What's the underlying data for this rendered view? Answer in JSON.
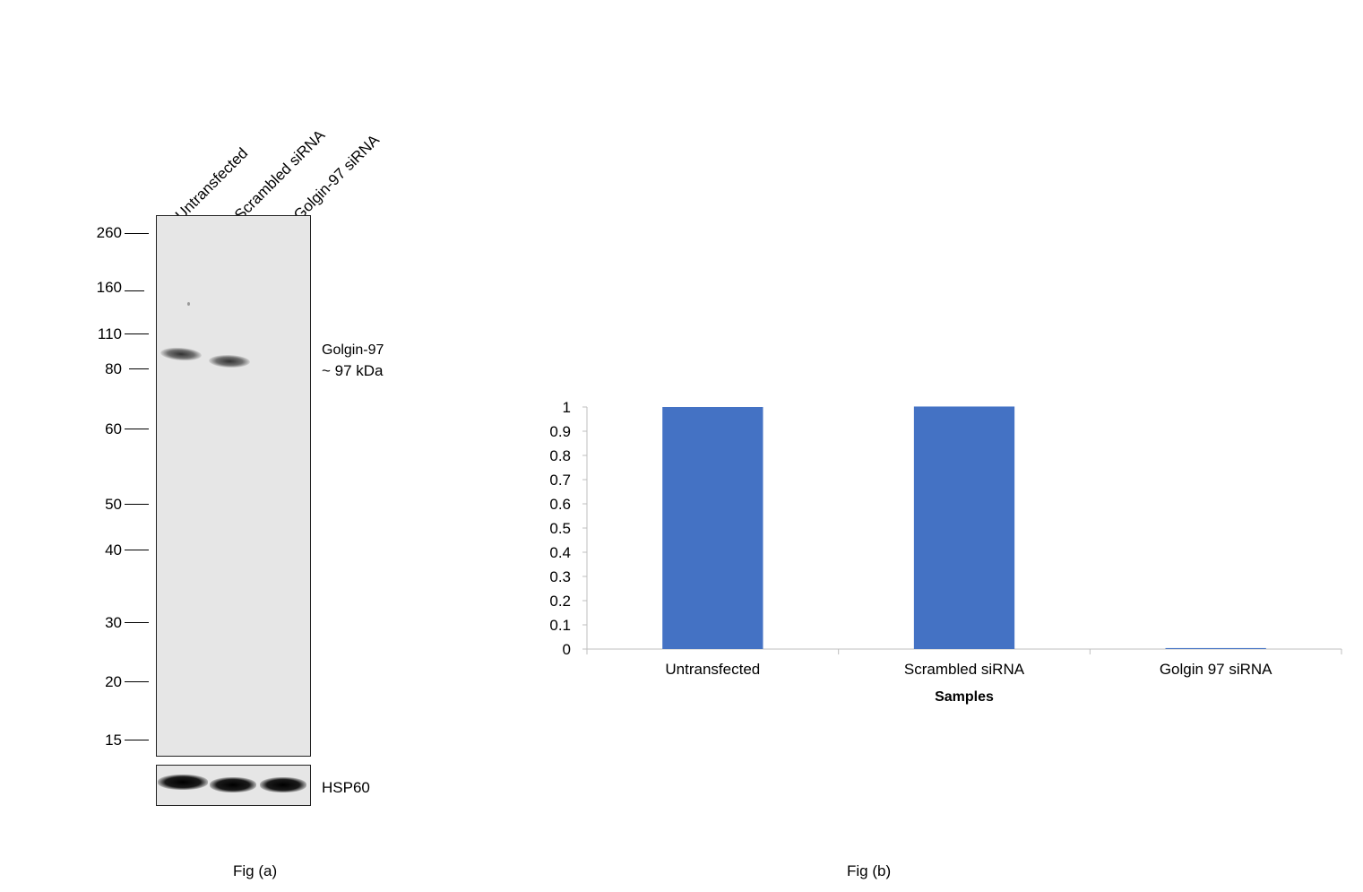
{
  "fig_a": {
    "lanes": [
      "Untransfected",
      "Scrambled siRNA",
      "Golgin-97 siRNA"
    ],
    "markers": [
      "260",
      "160",
      "110",
      "80",
      "60",
      "50",
      "40",
      "30",
      "20",
      "15"
    ],
    "target_name": "Golgin-97",
    "target_size": "~ 97 kDa",
    "loading_control": "HSP60",
    "caption": "Fig (a)"
  },
  "fig_b": {
    "caption": "Fig (b)"
  },
  "chart_data": {
    "type": "bar",
    "categories": [
      "Untransfected",
      "Scrambled siRNA",
      "Golgin 97 siRNA"
    ],
    "values": [
      1.0,
      1.002,
      0.004
    ],
    "title": "",
    "xlabel": "Samples",
    "ylabel": "",
    "ylim": [
      0,
      1
    ],
    "yticks": [
      "0",
      "0.1",
      "0.2",
      "0.3",
      "0.4",
      "0.5",
      "0.6",
      "0.7",
      "0.8",
      "0.9",
      "1"
    ],
    "grid": false,
    "bar_color": "#4472c4"
  }
}
